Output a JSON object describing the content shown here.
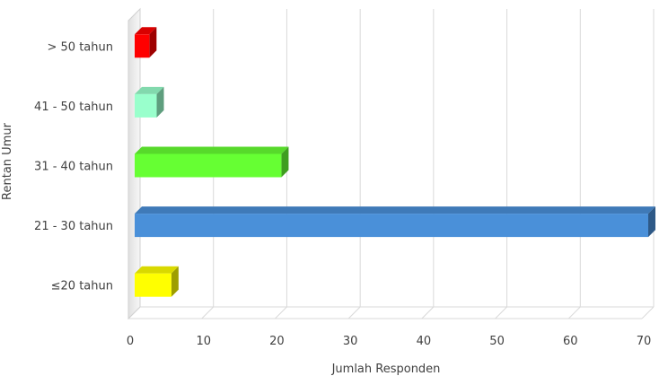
{
  "chart_data": {
    "type": "bar",
    "orientation": "horizontal",
    "style": "3d",
    "categories": [
      "≤20 tahun",
      "21 - 30 tahun",
      "31 - 40 tahun",
      "41 - 50 tahun",
      "> 50 tahun"
    ],
    "values": [
      5,
      70,
      20,
      3,
      2
    ],
    "colors": [
      "#ffff00",
      "#4a90d9",
      "#66ff33",
      "#99ffcc",
      "#ff0000"
    ],
    "xlabel": "Jumlah Responden",
    "ylabel": "Rentan Umur",
    "xlim": [
      0,
      70
    ],
    "xticks": [
      "0",
      "10",
      "20",
      "30",
      "40",
      "50",
      "60",
      "70"
    ],
    "grid": true,
    "legend": "none"
  }
}
